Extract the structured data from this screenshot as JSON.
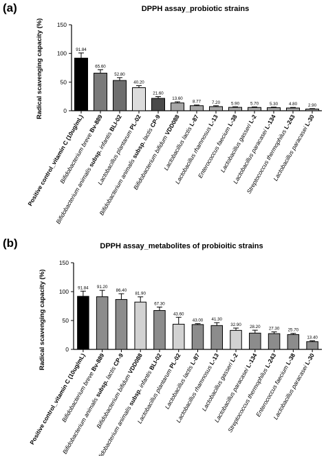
{
  "chart_data": [
    {
      "type": "bar",
      "panel_label": "(a)",
      "title": "DPPH assay_probiotic strains",
      "ylabel": "Radical scavenging capacity (%)",
      "ylim": [
        0,
        150
      ],
      "yticks": [
        0,
        50,
        100,
        150
      ],
      "categories": [
        [
          {
            "t": "Positive control_vitamin C (10ug/mL)",
            "b": true
          }
        ],
        [
          {
            "t": "Bifidobacterium breve ",
            "i": true
          },
          {
            "t": "Bv-889",
            "b": true
          }
        ],
        [
          {
            "t": "Bifidobacterium animalis ",
            "i": true
          },
          {
            "t": "subsp. ",
            "b": true
          },
          {
            "t": "infantis ",
            "i": true
          },
          {
            "t": "BLI-02",
            "b": true
          }
        ],
        [
          {
            "t": "Lactobacillus plantarum ",
            "i": true
          },
          {
            "t": "PL-02",
            "b": true
          }
        ],
        [
          {
            "t": "Bifidobacterium animalis ",
            "i": true
          },
          {
            "t": "subsp. ",
            "b": true
          },
          {
            "t": "lactis ",
            "i": true
          },
          {
            "t": "CP-9",
            "b": true
          }
        ],
        [
          {
            "t": "Bifidobacterium bifidum ",
            "i": true
          },
          {
            "t": "VDD088",
            "b": true
          }
        ],
        [
          {
            "t": "Lactobacillus lactis ",
            "i": true
          },
          {
            "t": "L-87",
            "b": true
          }
        ],
        [
          {
            "t": "Lactobacillus rhamnosus ",
            "i": true
          },
          {
            "t": "L-13",
            "b": true
          }
        ],
        [
          {
            "t": "Enterococcus faecium ",
            "i": true
          },
          {
            "t": "L-38",
            "b": true
          }
        ],
        [
          {
            "t": "Lactobacillus gasseri ",
            "i": true
          },
          {
            "t": "L-2",
            "b": true
          }
        ],
        [
          {
            "t": "Lactobacillus paracasei ",
            "i": true
          },
          {
            "t": "L-134",
            "b": true
          }
        ],
        [
          {
            "t": "Streptococcus thermophilus ",
            "i": true
          },
          {
            "t": "L-243",
            "b": true
          }
        ],
        [
          {
            "t": "Lactobacillus paracasei ",
            "i": true
          },
          {
            "t": "L-30",
            "b": true
          }
        ]
      ],
      "values": [
        91.84,
        65.6,
        52.8,
        40.2,
        21.6,
        13.6,
        8.77,
        7.2,
        5.9,
        5.7,
        5.3,
        4.8,
        2.9
      ],
      "value_labels": [
        "91.84",
        "65.60",
        "52.80",
        "40.20",
        "21.60",
        "13.60",
        "8.77",
        "7.20",
        "5.90",
        "5.70",
        "5.30",
        "4.80",
        "2.90"
      ],
      "errors": [
        9,
        6,
        5,
        3.5,
        3,
        2,
        1.2,
        1.5,
        1,
        1,
        1,
        1,
        0.8
      ],
      "colors": [
        "#000000",
        "#7a7a7a",
        "#6e6e6e",
        "#dcdcdc",
        "#4a4a4a",
        "#a6a6a6",
        "#a6a6a6",
        "#a6a6a6",
        "#a6a6a6",
        "#a6a6a6",
        "#a6a6a6",
        "#a6a6a6",
        "#a6a6a6"
      ]
    },
    {
      "type": "bar",
      "panel_label": "(b)",
      "title": "DPPH assay_metabolites of probioitic strains",
      "ylabel": "Radical scavenging capacity (%)",
      "ylim": [
        0,
        150
      ],
      "yticks": [
        0,
        50,
        100,
        150
      ],
      "categories": [
        [
          {
            "t": "Positive control_vitamin C (10ug/mL)",
            "b": true
          }
        ],
        [
          {
            "t": "Bifidobacterium breve ",
            "i": true
          },
          {
            "t": "Bv-889",
            "b": true
          }
        ],
        [
          {
            "t": "Bifidobacterium animalis ",
            "i": true
          },
          {
            "t": "subsp. ",
            "b": true
          },
          {
            "t": "lactis ",
            "i": true
          },
          {
            "t": "CP-9",
            "b": true
          }
        ],
        [
          {
            "t": "Bifidobacterium bifidum ",
            "i": true
          },
          {
            "t": "VDD088",
            "b": true
          }
        ],
        [
          {
            "t": "Bifidobacterium animalis ",
            "i": true
          },
          {
            "t": "subsp. ",
            "b": true
          },
          {
            "t": "infantis ",
            "i": true
          },
          {
            "t": "BLI-02",
            "b": true
          }
        ],
        [
          {
            "t": "Lactobacillus plantarum ",
            "i": true
          },
          {
            "t": "PL-02",
            "b": true
          }
        ],
        [
          {
            "t": "Lactobacillus lactis ",
            "i": true
          },
          {
            "t": "L-87",
            "b": true
          }
        ],
        [
          {
            "t": "Lactobacillus rhamnosus ",
            "i": true
          },
          {
            "t": "L-13",
            "b": true
          }
        ],
        [
          {
            "t": "Lactobacillus gasseri ",
            "i": true
          },
          {
            "t": "L-2",
            "b": true
          }
        ],
        [
          {
            "t": "Lactobacillus paracasei ",
            "i": true
          },
          {
            "t": "L-134",
            "b": true
          }
        ],
        [
          {
            "t": "Streptococcus thermophilus ",
            "i": true
          },
          {
            "t": "L-243",
            "b": true
          }
        ],
        [
          {
            "t": "Enterococcus faecium ",
            "i": true
          },
          {
            "t": "L-38",
            "b": true
          }
        ],
        [
          {
            "t": "Lactobacillus paracasei ",
            "i": true
          },
          {
            "t": "L-30",
            "b": true
          }
        ]
      ],
      "values": [
        91.84,
        91.2,
        86.4,
        81.9,
        67.3,
        43.6,
        43.0,
        41.3,
        32.9,
        28.2,
        27.3,
        25.7,
        13.4
      ],
      "value_labels": [
        "91.84",
        "91.20",
        "86.40",
        "81.90",
        "67.30",
        "43.60",
        "43.00",
        "41.30",
        "32.90",
        "28.20",
        "27.30",
        "25.70",
        "13.40"
      ],
      "errors": [
        9,
        11,
        10,
        9,
        6,
        12,
        1.5,
        5,
        4,
        5,
        3,
        2,
        1.5
      ],
      "colors": [
        "#000000",
        "#8c8c8c",
        "#8c8c8c",
        "#d2d2d2",
        "#8c8c8c",
        "#d2d2d2",
        "#8c8c8c",
        "#8c8c8c",
        "#d2d2d2",
        "#8c8c8c",
        "#8c8c8c",
        "#8c8c8c",
        "#8c8c8c"
      ]
    }
  ]
}
